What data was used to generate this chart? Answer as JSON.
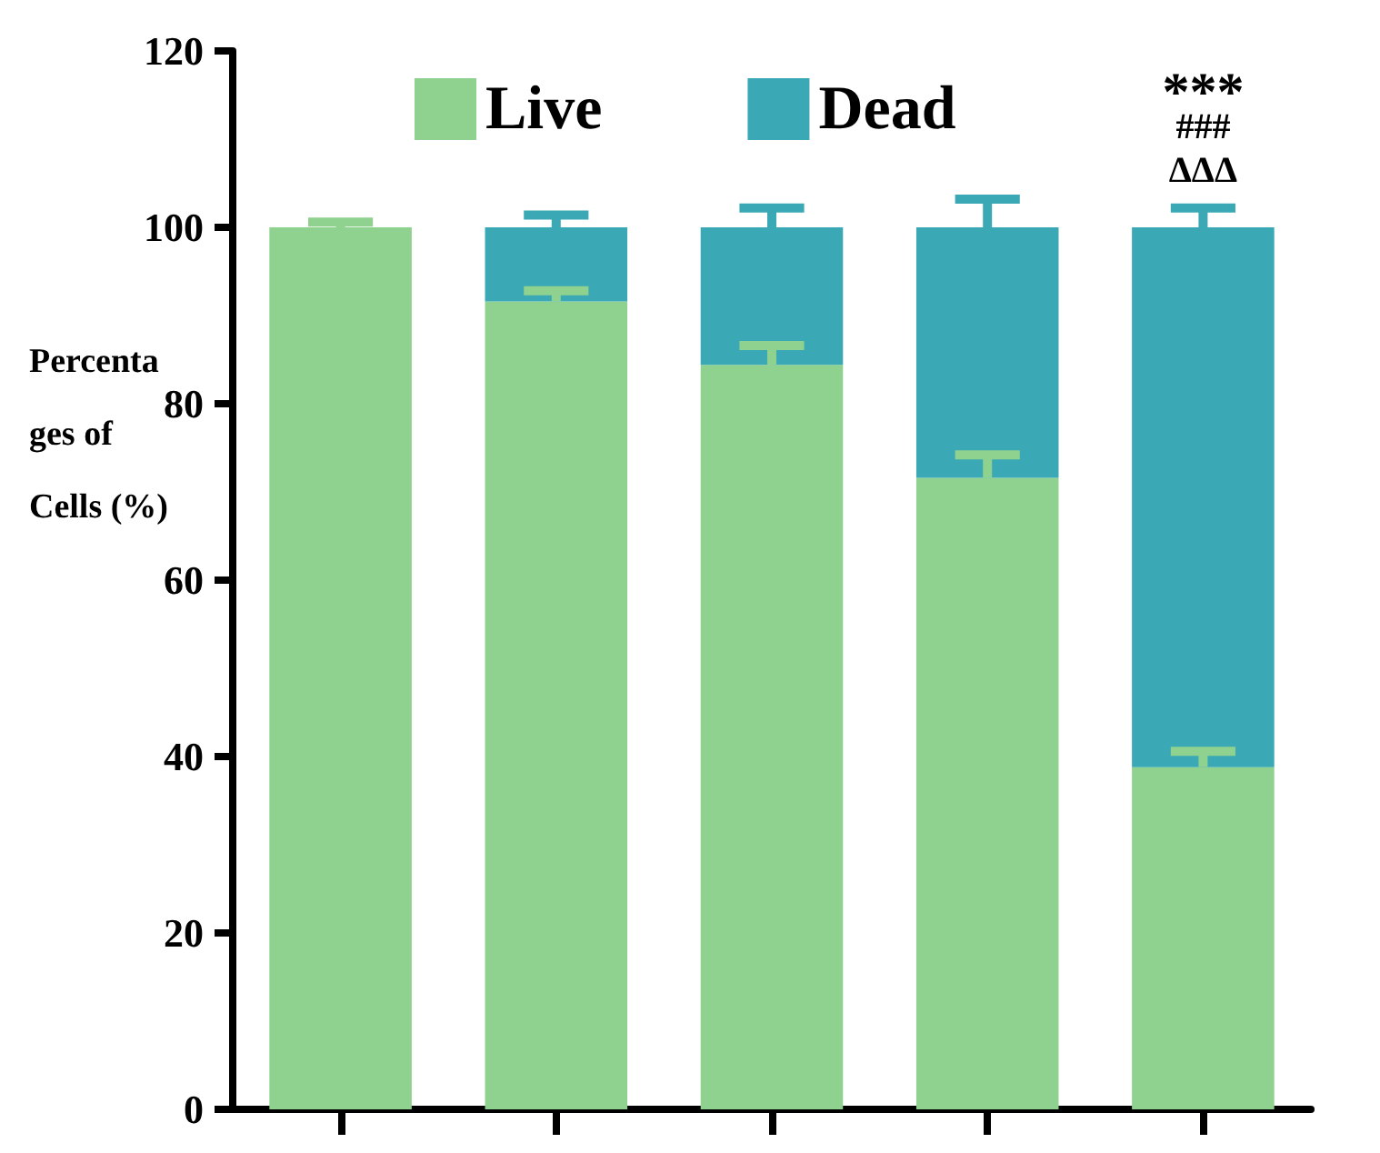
{
  "chart_data": {
    "type": "bar",
    "stacked": true,
    "ylabel": "Percentages of Cells (%)",
    "categories": [
      null,
      null,
      null,
      null,
      null
    ],
    "series": [
      {
        "name": "Live",
        "color": "#8fd18e",
        "values": [
          100,
          91.6,
          84.4,
          71.6,
          38.8
        ],
        "errors": [
          [
            100,
            100.6
          ],
          [
            91.6,
            92.8
          ],
          [
            84.4,
            86.6
          ],
          [
            71.6,
            74.2
          ],
          [
            38.8,
            40.6
          ]
        ]
      },
      {
        "name": "Dead",
        "color": "#3ba9b5",
        "values": [
          null,
          8.4,
          15.6,
          28.4,
          61.2
        ],
        "errors": [
          null,
          [
            100,
            101.4
          ],
          [
            100,
            102.2
          ],
          [
            100,
            103.2
          ],
          [
            100,
            102.2
          ]
        ]
      }
    ],
    "ylim": [
      0,
      120
    ],
    "yticks": [
      0,
      20,
      40,
      60,
      80,
      100,
      120
    ],
    "grid": false,
    "legend": "top",
    "annotations": [
      "***",
      "###",
      "ΔΔΔ"
    ]
  }
}
